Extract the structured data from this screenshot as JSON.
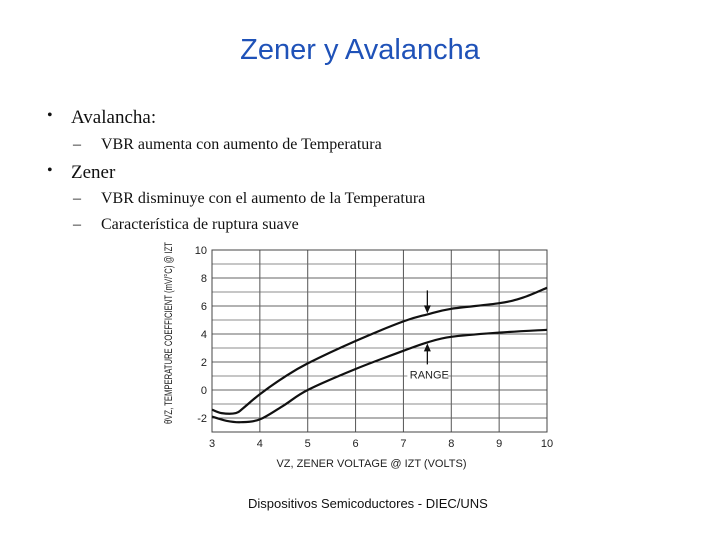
{
  "slide": {
    "title": "Zener y Avalancha",
    "bullets": [
      {
        "text": "Avalancha:",
        "subs": [
          "VBR aumenta con aumento de Temperatura"
        ]
      },
      {
        "text": "Zener",
        "subs": [
          "VBR disminuye con el aumento de la Temperatura",
          "Característica de ruptura suave"
        ]
      }
    ],
    "footer": "Dispositivos Semicoductores - DIEC/UNS"
  },
  "chart_data": {
    "type": "line",
    "xlabel": "VZ, ZENER VOLTAGE @ IZT (VOLTS)",
    "ylabel": "θVZ, TEMPERATURE COEFFICIENT (mV/°C) @ IZT",
    "xlim": [
      3,
      10
    ],
    "ylim": [
      -3,
      10
    ],
    "x_ticks": [
      "3",
      "4",
      "5",
      "6",
      "7",
      "8",
      "9",
      "10"
    ],
    "y_ticks": [
      "-2",
      "0",
      "2",
      "4",
      "6",
      "8",
      "10"
    ],
    "grid": true,
    "annotation": "RANGE",
    "series": [
      {
        "x": [
          3,
          3.2,
          3.5,
          3.65,
          4,
          4.5,
          5,
          6,
          7,
          7.5,
          8,
          9,
          9.5,
          10
        ],
        "y": [
          -1.4,
          -1.65,
          -1.65,
          -1.3,
          -0.3,
          0.9,
          1.9,
          3.5,
          4.9,
          5.4,
          5.8,
          6.2,
          6.6,
          7.3
        ]
      },
      {
        "x": [
          3,
          3.3,
          3.6,
          4,
          4.5,
          5,
          6,
          7,
          7.5,
          8,
          9,
          10
        ],
        "y": [
          -1.9,
          -2.2,
          -2.3,
          -2.1,
          -1.1,
          0.0,
          1.5,
          2.8,
          3.4,
          3.8,
          4.1,
          4.3
        ]
      }
    ]
  }
}
